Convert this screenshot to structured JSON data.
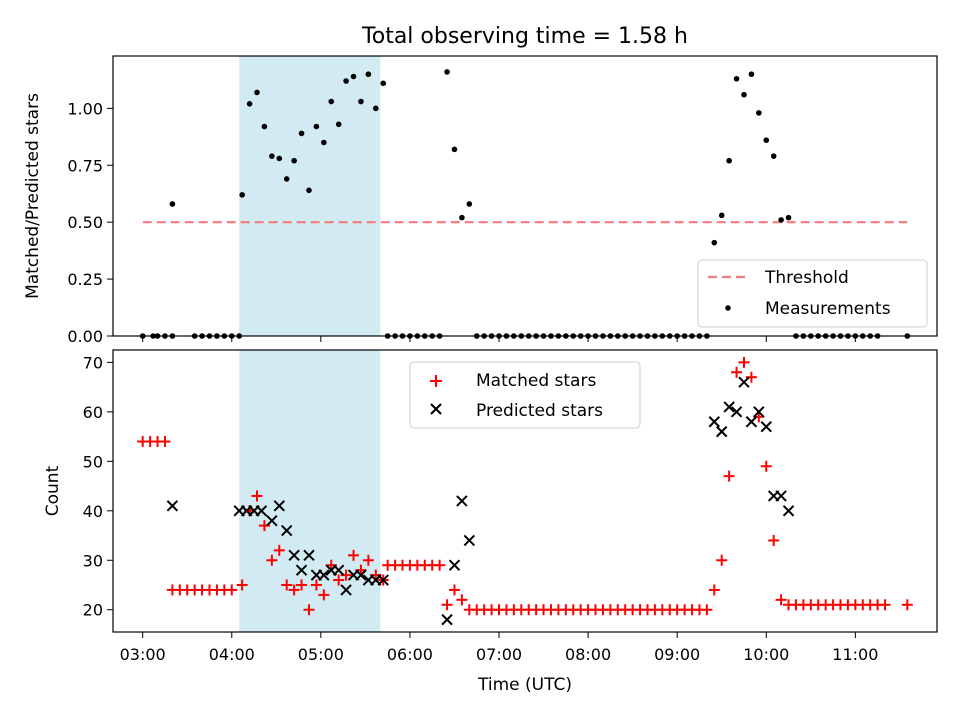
{
  "figure": {
    "title": "Total observing time = 1.58 h"
  },
  "chart_data": [
    {
      "type": "scatter",
      "panel": "top",
      "title": "Total observing time = 1.58 h",
      "xlabel": "",
      "ylabel": "Matched/Predicted stars",
      "xlim": [
        "02:40",
        "11:55"
      ],
      "ylim": [
        0,
        1.23
      ],
      "y_ticks": [
        0.0,
        0.25,
        0.5,
        0.75,
        1.0
      ],
      "y_tick_labels": [
        "0.00",
        "0.25",
        "0.50",
        "0.75",
        "1.00"
      ],
      "shaded_interval": [
        "04:05",
        "05:40"
      ],
      "legend": {
        "placement": "lower right",
        "entries": [
          "Threshold",
          "Measurements"
        ]
      },
      "series": [
        {
          "name": "Threshold",
          "kind": "dashed-line",
          "color": "#f47c7c",
          "x": [
            "03:00",
            "11:35"
          ],
          "y": [
            0.5,
            0.5
          ]
        },
        {
          "name": "Measurements",
          "kind": "dots",
          "color": "#000000",
          "points": [
            [
              "03:00",
              0
            ],
            [
              "03:07",
              0
            ],
            [
              "03:10",
              0
            ],
            [
              "03:15",
              0
            ],
            [
              "03:20",
              0
            ],
            [
              "03:35",
              0
            ],
            [
              "03:40",
              0
            ],
            [
              "03:45",
              0
            ],
            [
              "03:50",
              0
            ],
            [
              "03:55",
              0
            ],
            [
              "04:00",
              0
            ],
            [
              "04:05",
              0
            ],
            [
              "03:20",
              0.58
            ],
            [
              "04:07",
              0.62
            ],
            [
              "04:12",
              1.02
            ],
            [
              "04:17",
              1.07
            ],
            [
              "04:22",
              0.92
            ],
            [
              "04:27",
              0.79
            ],
            [
              "04:32",
              0.78
            ],
            [
              "04:37",
              0.69
            ],
            [
              "04:42",
              0.77
            ],
            [
              "04:47",
              0.89
            ],
            [
              "04:52",
              0.64
            ],
            [
              "04:57",
              0.92
            ],
            [
              "05:02",
              0.85
            ],
            [
              "05:07",
              1.03
            ],
            [
              "05:12",
              0.93
            ],
            [
              "05:17",
              1.12
            ],
            [
              "05:22",
              1.14
            ],
            [
              "05:27",
              1.03
            ],
            [
              "05:32",
              1.15
            ],
            [
              "05:37",
              1.0
            ],
            [
              "05:42",
              1.11
            ],
            [
              "05:45",
              0
            ],
            [
              "05:50",
              0
            ],
            [
              "05:55",
              0
            ],
            [
              "06:00",
              0
            ],
            [
              "06:05",
              0
            ],
            [
              "06:10",
              0
            ],
            [
              "06:15",
              0
            ],
            [
              "06:20",
              0
            ],
            [
              "06:25",
              1.16
            ],
            [
              "06:30",
              0.82
            ],
            [
              "06:35",
              0.52
            ],
            [
              "06:40",
              0.58
            ],
            [
              "06:45",
              0
            ],
            [
              "06:50",
              0
            ],
            [
              "06:55",
              0
            ],
            [
              "07:00",
              0
            ],
            [
              "07:05",
              0
            ],
            [
              "07:10",
              0
            ],
            [
              "07:15",
              0
            ],
            [
              "07:20",
              0
            ],
            [
              "07:25",
              0
            ],
            [
              "07:30",
              0
            ],
            [
              "07:35",
              0
            ],
            [
              "07:40",
              0
            ],
            [
              "07:45",
              0
            ],
            [
              "07:50",
              0
            ],
            [
              "07:55",
              0
            ],
            [
              "08:00",
              0
            ],
            [
              "08:05",
              0
            ],
            [
              "08:10",
              0
            ],
            [
              "08:15",
              0
            ],
            [
              "08:20",
              0
            ],
            [
              "08:25",
              0
            ],
            [
              "08:30",
              0
            ],
            [
              "08:35",
              0
            ],
            [
              "08:40",
              0
            ],
            [
              "08:45",
              0
            ],
            [
              "08:50",
              0
            ],
            [
              "08:55",
              0
            ],
            [
              "09:00",
              0
            ],
            [
              "09:05",
              0
            ],
            [
              "09:10",
              0
            ],
            [
              "09:15",
              0
            ],
            [
              "09:20",
              0
            ],
            [
              "09:25",
              0.41
            ],
            [
              "09:30",
              0.53
            ],
            [
              "09:35",
              0.77
            ],
            [
              "09:40",
              1.13
            ],
            [
              "09:45",
              1.06
            ],
            [
              "09:50",
              1.15
            ],
            [
              "09:55",
              0.98
            ],
            [
              "10:00",
              0.86
            ],
            [
              "10:05",
              0.79
            ],
            [
              "10:10",
              0.51
            ],
            [
              "10:15",
              0.52
            ],
            [
              "10:20",
              0
            ],
            [
              "10:25",
              0
            ],
            [
              "10:30",
              0
            ],
            [
              "10:35",
              0
            ],
            [
              "10:40",
              0
            ],
            [
              "10:45",
              0
            ],
            [
              "10:50",
              0
            ],
            [
              "10:55",
              0
            ],
            [
              "11:00",
              0
            ],
            [
              "11:05",
              0
            ],
            [
              "11:10",
              0
            ],
            [
              "11:15",
              0
            ],
            [
              "11:35",
              0
            ]
          ]
        }
      ]
    },
    {
      "type": "scatter",
      "panel": "bottom",
      "title": "",
      "xlabel": "Time (UTC)",
      "ylabel": "Count",
      "xlim": [
        "02:40",
        "11:55"
      ],
      "ylim": [
        15.5,
        72.5
      ],
      "y_ticks": [
        20,
        30,
        40,
        50,
        60,
        70
      ],
      "y_tick_labels": [
        "20",
        "30",
        "40",
        "50",
        "60",
        "70"
      ],
      "x_ticks": [
        "03:00",
        "04:00",
        "05:00",
        "06:00",
        "07:00",
        "08:00",
        "09:00",
        "10:00",
        "11:00"
      ],
      "x_tick_labels": [
        "03:00",
        "04:00",
        "05:00",
        "06:00",
        "07:00",
        "08:00",
        "09:00",
        "10:00",
        "11:00"
      ],
      "shaded_interval": [
        "04:05",
        "05:40"
      ],
      "legend": {
        "placement": "upper center",
        "entries": [
          "Matched stars",
          "Predicted stars"
        ]
      },
      "series": [
        {
          "name": "Matched stars",
          "marker": "+",
          "color": "#ff0000",
          "points": [
            [
              "03:00",
              54
            ],
            [
              "03:05",
              54
            ],
            [
              "03:10",
              54
            ],
            [
              "03:15",
              54
            ],
            [
              "03:20",
              24
            ],
            [
              "03:25",
              24
            ],
            [
              "03:30",
              24
            ],
            [
              "03:35",
              24
            ],
            [
              "03:40",
              24
            ],
            [
              "03:45",
              24
            ],
            [
              "03:50",
              24
            ],
            [
              "03:55",
              24
            ],
            [
              "04:00",
              24
            ],
            [
              "04:07",
              25
            ],
            [
              "04:12",
              40
            ],
            [
              "04:17",
              43
            ],
            [
              "04:22",
              37
            ],
            [
              "04:27",
              30
            ],
            [
              "04:32",
              32
            ],
            [
              "04:37",
              25
            ],
            [
              "04:42",
              24
            ],
            [
              "04:47",
              25
            ],
            [
              "04:52",
              20
            ],
            [
              "04:57",
              25
            ],
            [
              "05:02",
              23
            ],
            [
              "05:07",
              29
            ],
            [
              "05:12",
              26
            ],
            [
              "05:17",
              27
            ],
            [
              "05:22",
              31
            ],
            [
              "05:27",
              28
            ],
            [
              "05:32",
              30
            ],
            [
              "05:37",
              27
            ],
            [
              "05:42",
              26
            ],
            [
              "05:45",
              29
            ],
            [
              "05:50",
              29
            ],
            [
              "05:55",
              29
            ],
            [
              "06:00",
              29
            ],
            [
              "06:05",
              29
            ],
            [
              "06:10",
              29
            ],
            [
              "06:15",
              29
            ],
            [
              "06:20",
              29
            ],
            [
              "06:25",
              21
            ],
            [
              "06:30",
              24
            ],
            [
              "06:35",
              22
            ],
            [
              "06:40",
              20
            ],
            [
              "06:45",
              20
            ],
            [
              "06:50",
              20
            ],
            [
              "06:55",
              20
            ],
            [
              "07:00",
              20
            ],
            [
              "07:05",
              20
            ],
            [
              "07:10",
              20
            ],
            [
              "07:15",
              20
            ],
            [
              "07:20",
              20
            ],
            [
              "07:25",
              20
            ],
            [
              "07:30",
              20
            ],
            [
              "07:35",
              20
            ],
            [
              "07:40",
              20
            ],
            [
              "07:45",
              20
            ],
            [
              "07:50",
              20
            ],
            [
              "07:55",
              20
            ],
            [
              "08:00",
              20
            ],
            [
              "08:05",
              20
            ],
            [
              "08:10",
              20
            ],
            [
              "08:15",
              20
            ],
            [
              "08:20",
              20
            ],
            [
              "08:25",
              20
            ],
            [
              "08:30",
              20
            ],
            [
              "08:35",
              20
            ],
            [
              "08:40",
              20
            ],
            [
              "08:45",
              20
            ],
            [
              "08:50",
              20
            ],
            [
              "08:55",
              20
            ],
            [
              "09:00",
              20
            ],
            [
              "09:05",
              20
            ],
            [
              "09:10",
              20
            ],
            [
              "09:15",
              20
            ],
            [
              "09:20",
              20
            ],
            [
              "09:25",
              24
            ],
            [
              "09:30",
              30
            ],
            [
              "09:35",
              47
            ],
            [
              "09:40",
              68
            ],
            [
              "09:45",
              70
            ],
            [
              "09:50",
              67
            ],
            [
              "09:55",
              59
            ],
            [
              "10:00",
              49
            ],
            [
              "10:05",
              34
            ],
            [
              "10:10",
              22
            ],
            [
              "10:15",
              21
            ],
            [
              "10:20",
              21
            ],
            [
              "10:25",
              21
            ],
            [
              "10:30",
              21
            ],
            [
              "10:35",
              21
            ],
            [
              "10:40",
              21
            ],
            [
              "10:45",
              21
            ],
            [
              "10:50",
              21
            ],
            [
              "10:55",
              21
            ],
            [
              "11:00",
              21
            ],
            [
              "11:05",
              21
            ],
            [
              "11:10",
              21
            ],
            [
              "11:15",
              21
            ],
            [
              "11:20",
              21
            ],
            [
              "11:35",
              21
            ]
          ]
        },
        {
          "name": "Predicted stars",
          "marker": "x",
          "color": "#000000",
          "points": [
            [
              "03:20",
              41
            ],
            [
              "04:05",
              40
            ],
            [
              "04:10",
              40
            ],
            [
              "04:15",
              40
            ],
            [
              "04:20",
              40
            ],
            [
              "04:27",
              38
            ],
            [
              "04:32",
              41
            ],
            [
              "04:37",
              36
            ],
            [
              "04:42",
              31
            ],
            [
              "04:47",
              28
            ],
            [
              "04:52",
              31
            ],
            [
              "04:57",
              27
            ],
            [
              "05:02",
              27
            ],
            [
              "05:07",
              28
            ],
            [
              "05:12",
              28
            ],
            [
              "05:17",
              24
            ],
            [
              "05:22",
              27
            ],
            [
              "05:27",
              27
            ],
            [
              "05:32",
              26
            ],
            [
              "05:37",
              26
            ],
            [
              "05:42",
              26
            ],
            [
              "06:25",
              18
            ],
            [
              "06:30",
              29
            ],
            [
              "06:35",
              42
            ],
            [
              "06:40",
              34
            ],
            [
              "09:25",
              58
            ],
            [
              "09:30",
              56
            ],
            [
              "09:35",
              61
            ],
            [
              "09:40",
              60
            ],
            [
              "09:45",
              66
            ],
            [
              "09:50",
              58
            ],
            [
              "09:55",
              60
            ],
            [
              "10:00",
              57
            ],
            [
              "10:05",
              43
            ],
            [
              "10:10",
              43
            ],
            [
              "10:15",
              40
            ]
          ]
        }
      ]
    }
  ]
}
